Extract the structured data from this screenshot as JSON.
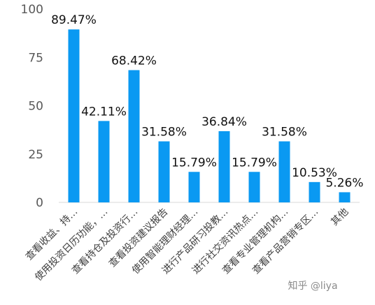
{
  "watermark": "知乎 @liya",
  "chart_data": {
    "type": "bar",
    "title": "",
    "xlabel": "",
    "ylabel": "",
    "ylim": [
      0,
      100
    ],
    "yticks": [
      0,
      25,
      50,
      75,
      100
    ],
    "grid": false,
    "bar_color": "#0a99f2",
    "categories": [
      "查看收益、持…",
      "使用投资日历功能，…",
      "查看持仓及投资行…",
      "查看投资建议报告",
      "使用智能理财经理…",
      "进行产品研习投教…",
      "进行社交资讯热点…",
      "查看专业管理机构…",
      "查看产品营销专区…",
      "其他"
    ],
    "values": [
      89.47,
      42.11,
      68.42,
      31.58,
      15.79,
      36.84,
      15.79,
      31.58,
      10.53,
      5.26
    ],
    "data_labels": [
      "89.47%",
      "42.11%",
      "68.42%",
      "31.58%",
      "15.79%",
      "36.84%",
      "15.79%",
      "31.58%",
      "10.53%",
      "5.26%"
    ]
  }
}
